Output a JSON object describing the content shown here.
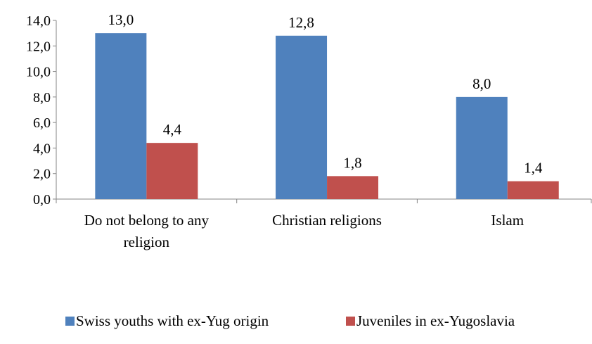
{
  "chart_data": {
    "type": "bar",
    "categories": [
      [
        "Do not belong to any",
        "religion"
      ],
      [
        "Christian religions"
      ],
      [
        "Islam"
      ]
    ],
    "series": [
      {
        "name": "Swiss youths with ex-Yug origin",
        "color": "#4F81BD",
        "values": [
          13.0,
          12.8,
          8.0
        ],
        "labels": [
          "13,0",
          "12,8",
          "8,0"
        ]
      },
      {
        "name": "Juveniles in ex-Yugoslavia",
        "color": "#C0504D",
        "values": [
          4.4,
          1.8,
          1.4
        ],
        "labels": [
          "4,4",
          "1,8",
          "1,4"
        ]
      }
    ],
    "ylim": [
      0,
      14
    ],
    "yticks": [
      {
        "value": 0,
        "label": "0,0"
      },
      {
        "value": 2,
        "label": "2,0"
      },
      {
        "value": 4,
        "label": "4,0"
      },
      {
        "value": 6,
        "label": "6,0"
      },
      {
        "value": 8,
        "label": "8,0"
      },
      {
        "value": 10,
        "label": "10,0"
      },
      {
        "value": 12,
        "label": "12,0"
      },
      {
        "value": 14,
        "label": "14,0"
      }
    ],
    "grid": false,
    "legend": "bottom"
  }
}
